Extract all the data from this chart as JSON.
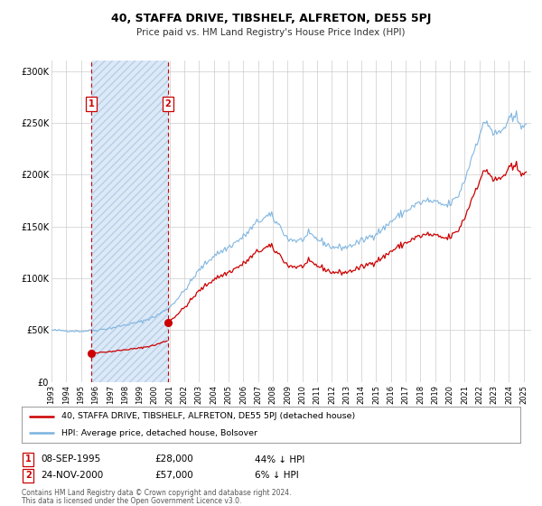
{
  "title": "40, STAFFA DRIVE, TIBSHELF, ALFRETON, DE55 5PJ",
  "subtitle": "Price paid vs. HM Land Registry's House Price Index (HPI)",
  "xlim": [
    1993.0,
    2025.5
  ],
  "ylim": [
    0,
    310000
  ],
  "yticks": [
    0,
    50000,
    100000,
    150000,
    200000,
    250000,
    300000
  ],
  "ytick_labels": [
    "£0",
    "£50K",
    "£100K",
    "£150K",
    "£200K",
    "£250K",
    "£300K"
  ],
  "xtick_years": [
    1993,
    1994,
    1995,
    1996,
    1997,
    1998,
    1999,
    2000,
    2001,
    2002,
    2003,
    2004,
    2005,
    2006,
    2007,
    2008,
    2009,
    2010,
    2011,
    2012,
    2013,
    2014,
    2015,
    2016,
    2017,
    2018,
    2019,
    2020,
    2021,
    2022,
    2023,
    2024,
    2025
  ],
  "sale1_date": 1995.69,
  "sale1_price": 28000,
  "sale2_date": 2000.9,
  "sale2_price": 57000,
  "sale1_info": "08-SEP-1995",
  "sale1_amount": "£28,000",
  "sale1_pct": "44% ↓ HPI",
  "sale2_info": "24-NOV-2000",
  "sale2_amount": "£57,000",
  "sale2_pct": "6% ↓ HPI",
  "legend_line1": "40, STAFFA DRIVE, TIBSHELF, ALFRETON, DE55 5PJ (detached house)",
  "legend_line2": "HPI: Average price, detached house, Bolsover",
  "footer1": "Contains HM Land Registry data © Crown copyright and database right 2024.",
  "footer2": "This data is licensed under the Open Government Licence v3.0.",
  "hpi_color": "#7ab3e0",
  "price_color": "#cc0000",
  "shade_color": "#dce9f7",
  "hatch_color": "#b8cfe8",
  "grid_color": "#cccccc",
  "background_color": "#ffffff"
}
